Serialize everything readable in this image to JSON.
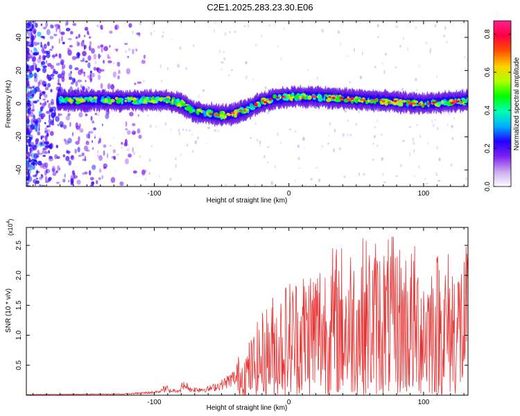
{
  "title": "C2E1.2025.283.23.30.E06",
  "chart_data": [
    {
      "type": "heatmap",
      "name": "spectrogram",
      "xlabel": "Height of straight line (km)",
      "ylabel": "Frequency (Hz)",
      "xlim": [
        -195,
        133
      ],
      "ylim": [
        -50,
        50
      ],
      "xticks": [
        -100,
        0,
        100
      ],
      "yticks": [
        -40,
        -20,
        0,
        20,
        40
      ],
      "grid": false,
      "ridge": {
        "x": [
          -170,
          -150,
          -130,
          -110,
          -90,
          -80,
          -70,
          -60,
          -50,
          -40,
          -30,
          -20,
          -10,
          0,
          20,
          40,
          60,
          80,
          100,
          120,
          133
        ],
        "y": [
          2,
          2,
          2,
          2,
          2,
          0,
          -5,
          -6,
          -7,
          -6,
          -3,
          1,
          3,
          4,
          4,
          3,
          2,
          1,
          0,
          1,
          2
        ]
      },
      "colorbar": {
        "label": "Normalized spectral amplitude",
        "ticks": [
          "0.0",
          "0.2",
          "0.4",
          "0.6",
          "0.8"
        ],
        "range": [
          0,
          0.87
        ],
        "colors": [
          "#ffffff",
          "#c8a8f0",
          "#8020f0",
          "#2000ff",
          "#00b0ff",
          "#00ffb0",
          "#00ff00",
          "#b0ff00",
          "#ffd000",
          "#ff5000",
          "#ff0040",
          "#ff2090"
        ]
      }
    },
    {
      "type": "line",
      "name": "snr",
      "xlabel": "Height of straight line (km)",
      "ylabel": "SNR (10 * v/v)",
      "scale_label": "(x10",
      "scale_exp": "4",
      "scale_close": ")",
      "xlim": [
        -195,
        133
      ],
      "ylim": [
        0,
        2.8
      ],
      "xticks": [
        -100,
        0,
        100
      ],
      "yticks": [
        "0.5",
        "1.0",
        "1.5",
        "2.0",
        "2.5"
      ],
      "color": "#e83030",
      "envelope": {
        "x": [
          -195,
          -120,
          -100,
          -90,
          -80,
          -60,
          -50,
          -40,
          -30,
          -20,
          -10,
          0,
          20,
          40,
          60,
          80,
          100,
          120,
          133
        ],
        "y": [
          0.02,
          0.04,
          0.1,
          0.14,
          0.18,
          0.2,
          0.35,
          0.6,
          0.9,
          1.4,
          1.8,
          2.0,
          2.4,
          2.6,
          2.7,
          2.65,
          2.5,
          2.5,
          2.5
        ]
      }
    }
  ]
}
